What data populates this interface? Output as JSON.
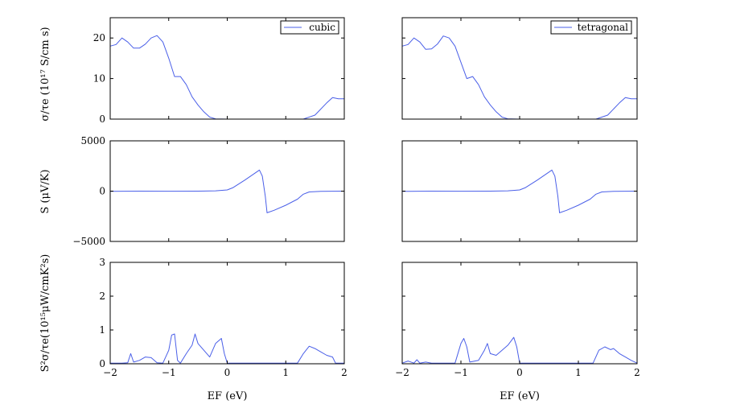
{
  "colors": {
    "series": "#4a5fe8",
    "axes": "#000000"
  },
  "chart_data": [
    {
      "id": "sigma_cubic",
      "type": "line",
      "xlim": [
        -2,
        2
      ],
      "ylim": [
        0,
        25
      ],
      "yticks": [
        0,
        10,
        20
      ],
      "ytick_labels": [
        "0",
        "10",
        "20"
      ],
      "ylabel": "σ/τe (10¹⁷ S/cm s)",
      "legend": "cubic",
      "series": [
        {
          "name": "cubic",
          "points": [
            [
              -2,
              18
            ],
            [
              -1.9,
              18.4
            ],
            [
              -1.8,
              20
            ],
            [
              -1.7,
              19
            ],
            [
              -1.6,
              17.5
            ],
            [
              -1.5,
              17.5
            ],
            [
              -1.4,
              18.5
            ],
            [
              -1.3,
              20
            ],
            [
              -1.2,
              20.6
            ],
            [
              -1.1,
              19
            ],
            [
              -1.0,
              15
            ],
            [
              -0.9,
              10.5
            ],
            [
              -0.8,
              10.5
            ],
            [
              -0.7,
              8.5
            ],
            [
              -0.6,
              5.5
            ],
            [
              -0.5,
              3.5
            ],
            [
              -0.4,
              1.8
            ],
            [
              -0.3,
              0.5
            ],
            [
              -0.2,
              0.05
            ],
            [
              0,
              0
            ],
            [
              1.3,
              0
            ],
            [
              1.5,
              1
            ],
            [
              1.7,
              4
            ],
            [
              1.8,
              5.3
            ],
            [
              1.9,
              5
            ],
            [
              2,
              5
            ]
          ]
        }
      ]
    },
    {
      "id": "sigma_tetragonal",
      "type": "line",
      "xlim": [
        -2,
        2
      ],
      "ylim": [
        0,
        25
      ],
      "yticks": [
        0,
        10,
        20
      ],
      "ytick_labels": [
        "",
        "",
        ""
      ],
      "ylabel": "",
      "legend": "tetragonal",
      "series": [
        {
          "name": "tetragonal",
          "points": [
            [
              -2,
              18
            ],
            [
              -1.9,
              18.4
            ],
            [
              -1.8,
              20
            ],
            [
              -1.7,
              19
            ],
            [
              -1.6,
              17.2
            ],
            [
              -1.5,
              17.3
            ],
            [
              -1.4,
              18.5
            ],
            [
              -1.3,
              20.5
            ],
            [
              -1.2,
              20
            ],
            [
              -1.1,
              18
            ],
            [
              -1.0,
              14
            ],
            [
              -0.9,
              10
            ],
            [
              -0.8,
              10.5
            ],
            [
              -0.7,
              8.5
            ],
            [
              -0.6,
              5.5
            ],
            [
              -0.5,
              3.5
            ],
            [
              -0.4,
              1.8
            ],
            [
              -0.3,
              0.5
            ],
            [
              -0.2,
              0.05
            ],
            [
              0,
              0
            ],
            [
              1.3,
              0
            ],
            [
              1.5,
              1
            ],
            [
              1.7,
              4
            ],
            [
              1.8,
              5.3
            ],
            [
              1.9,
              5
            ],
            [
              2,
              5
            ]
          ]
        }
      ]
    },
    {
      "id": "seebeck_cubic",
      "type": "line",
      "xlim": [
        -2,
        2
      ],
      "ylim": [
        -5000,
        5000
      ],
      "yticks": [
        -5000,
        0,
        5000
      ],
      "ytick_labels": [
        "−5000",
        "0",
        "5000"
      ],
      "ylabel": "S (μV/K)",
      "legend": "",
      "series": [
        {
          "name": "",
          "points": [
            [
              -2,
              -20
            ],
            [
              -1.5,
              0
            ],
            [
              -1,
              -10
            ],
            [
              -0.5,
              0
            ],
            [
              -0.2,
              30
            ],
            [
              0,
              120
            ],
            [
              0.1,
              350
            ],
            [
              0.3,
              1100
            ],
            [
              0.5,
              1900
            ],
            [
              0.55,
              2100
            ],
            [
              0.6,
              1500
            ],
            [
              0.65,
              -500
            ],
            [
              0.68,
              -2150
            ],
            [
              0.8,
              -1900
            ],
            [
              1.0,
              -1400
            ],
            [
              1.2,
              -800
            ],
            [
              1.3,
              -300
            ],
            [
              1.4,
              -80
            ],
            [
              1.6,
              -20
            ],
            [
              2,
              0
            ]
          ]
        }
      ]
    },
    {
      "id": "seebeck_tetragonal",
      "type": "line",
      "xlim": [
        -2,
        2
      ],
      "ylim": [
        -5000,
        5000
      ],
      "yticks": [
        -5000,
        0,
        5000
      ],
      "ytick_labels": [
        "",
        "",
        ""
      ],
      "ylabel": "",
      "legend": "",
      "series": [
        {
          "name": "",
          "points": [
            [
              -2,
              -20
            ],
            [
              -1.5,
              0
            ],
            [
              -1,
              -10
            ],
            [
              -0.5,
              0
            ],
            [
              -0.2,
              30
            ],
            [
              0,
              120
            ],
            [
              0.1,
              350
            ],
            [
              0.3,
              1100
            ],
            [
              0.5,
              1900
            ],
            [
              0.55,
              2100
            ],
            [
              0.6,
              1500
            ],
            [
              0.65,
              -500
            ],
            [
              0.68,
              -2150
            ],
            [
              0.8,
              -1900
            ],
            [
              1.0,
              -1400
            ],
            [
              1.2,
              -800
            ],
            [
              1.3,
              -300
            ],
            [
              1.4,
              -80
            ],
            [
              1.6,
              -20
            ],
            [
              2,
              0
            ]
          ]
        }
      ]
    },
    {
      "id": "pf_cubic",
      "type": "line",
      "xlim": [
        -2,
        2
      ],
      "ylim": [
        0,
        3
      ],
      "yticks": [
        0,
        1,
        2,
        3
      ],
      "ytick_labels": [
        "0",
        "1",
        "2",
        "3"
      ],
      "xticks": [
        -2,
        -1,
        0,
        1,
        2
      ],
      "xtick_labels": [
        "−2",
        "−1",
        "0",
        "1",
        "2"
      ],
      "xlabel": "EF (eV)",
      "ylabel": "S²σ/τe(10¹⁵μW/cmK²s)",
      "legend": "",
      "series": [
        {
          "name": "",
          "points": [
            [
              -2,
              0.02
            ],
            [
              -1.8,
              0.02
            ],
            [
              -1.7,
              0.03
            ],
            [
              -1.65,
              0.3
            ],
            [
              -1.6,
              0.05
            ],
            [
              -1.5,
              0.1
            ],
            [
              -1.4,
              0.2
            ],
            [
              -1.3,
              0.18
            ],
            [
              -1.2,
              0.03
            ],
            [
              -1.1,
              0.02
            ],
            [
              -1.0,
              0.4
            ],
            [
              -0.95,
              0.85
            ],
            [
              -0.9,
              0.88
            ],
            [
              -0.85,
              0.1
            ],
            [
              -0.8,
              0.02
            ],
            [
              -0.7,
              0.3
            ],
            [
              -0.6,
              0.55
            ],
            [
              -0.55,
              0.88
            ],
            [
              -0.5,
              0.6
            ],
            [
              -0.4,
              0.4
            ],
            [
              -0.3,
              0.2
            ],
            [
              -0.2,
              0.6
            ],
            [
              -0.1,
              0.75
            ],
            [
              -0.05,
              0.3
            ],
            [
              0,
              0.02
            ],
            [
              1.2,
              0.02
            ],
            [
              1.3,
              0.3
            ],
            [
              1.4,
              0.52
            ],
            [
              1.5,
              0.45
            ],
            [
              1.6,
              0.35
            ],
            [
              1.7,
              0.25
            ],
            [
              1.8,
              0.2
            ],
            [
              1.85,
              0.02
            ],
            [
              2,
              0.02
            ]
          ]
        }
      ]
    },
    {
      "id": "pf_tetragonal",
      "type": "line",
      "xlim": [
        -2,
        2
      ],
      "ylim": [
        0,
        3
      ],
      "yticks": [
        0,
        1,
        2,
        3
      ],
      "ytick_labels": [
        "",
        "",
        "",
        ""
      ],
      "xticks": [
        -2,
        -1,
        0,
        1,
        2
      ],
      "xtick_labels": [
        "−2",
        "−1",
        "0",
        "1",
        "2"
      ],
      "xlabel": "EF (eV)",
      "ylabel": "",
      "legend": "",
      "series": [
        {
          "name": "",
          "points": [
            [
              -2,
              0.02
            ],
            [
              -1.9,
              0.08
            ],
            [
              -1.8,
              0.02
            ],
            [
              -1.75,
              0.12
            ],
            [
              -1.7,
              0.02
            ],
            [
              -1.6,
              0.05
            ],
            [
              -1.5,
              0.02
            ],
            [
              -1.1,
              0.02
            ],
            [
              -1.0,
              0.6
            ],
            [
              -0.95,
              0.75
            ],
            [
              -0.9,
              0.5
            ],
            [
              -0.85,
              0.05
            ],
            [
              -0.7,
              0.1
            ],
            [
              -0.6,
              0.4
            ],
            [
              -0.55,
              0.6
            ],
            [
              -0.5,
              0.3
            ],
            [
              -0.4,
              0.25
            ],
            [
              -0.3,
              0.4
            ],
            [
              -0.2,
              0.55
            ],
            [
              -0.1,
              0.78
            ],
            [
              -0.05,
              0.5
            ],
            [
              0,
              0.02
            ],
            [
              1.25,
              0.02
            ],
            [
              1.35,
              0.4
            ],
            [
              1.45,
              0.5
            ],
            [
              1.55,
              0.42
            ],
            [
              1.6,
              0.45
            ],
            [
              1.7,
              0.3
            ],
            [
              1.8,
              0.2
            ],
            [
              1.9,
              0.1
            ],
            [
              2,
              0.02
            ]
          ]
        }
      ]
    }
  ]
}
